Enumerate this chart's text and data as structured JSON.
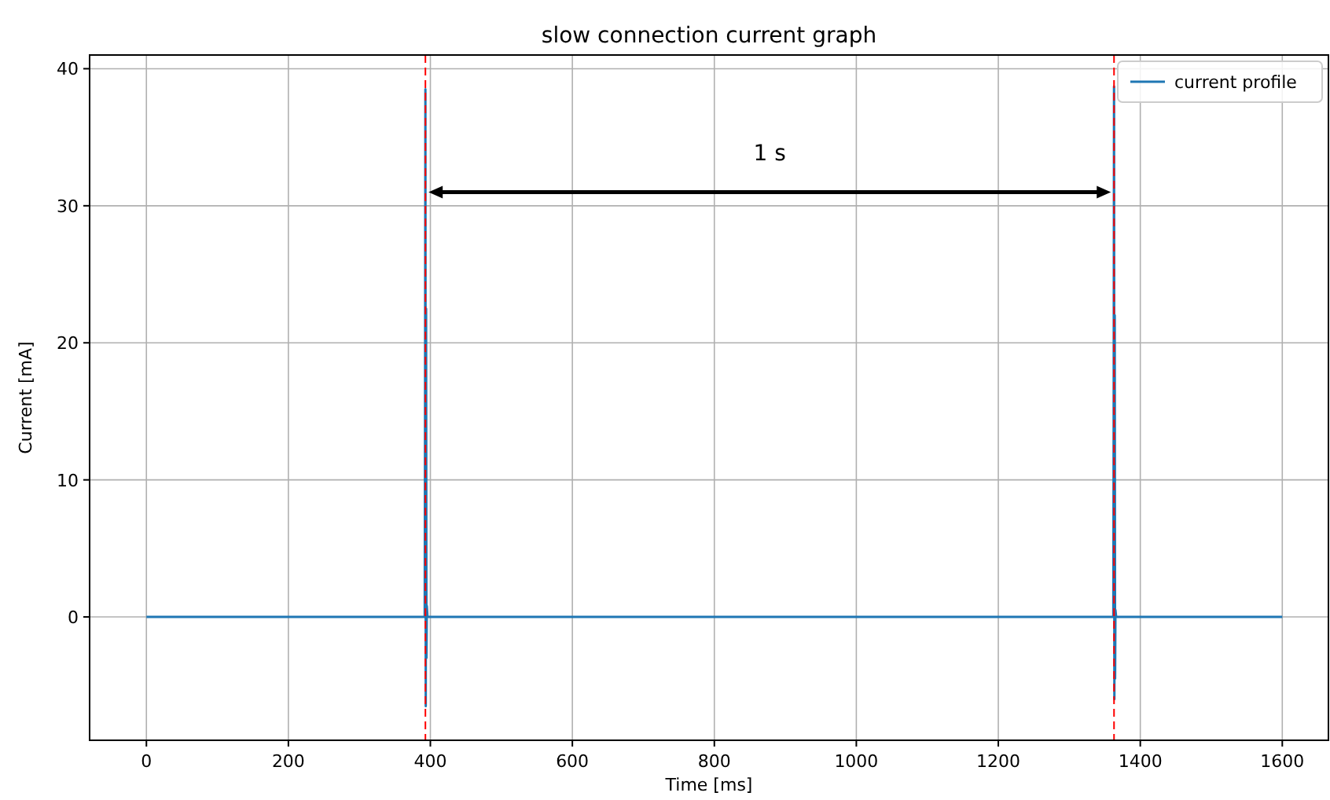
{
  "chart_data": {
    "type": "line",
    "title": "slow connection current graph",
    "xlabel": "Time [ms]",
    "ylabel": "Current [mA]",
    "xlim": [
      -80,
      1665
    ],
    "ylim": [
      -9,
      41
    ],
    "xticks": [
      0,
      200,
      400,
      600,
      800,
      1000,
      1200,
      1400,
      1600
    ],
    "yticks": [
      0,
      10,
      20,
      30,
      40
    ],
    "series": [
      {
        "name": "current profile",
        "color": "#1f77b4",
        "x": [
          0,
          392,
          392.5,
          393,
          393.5,
          394,
          394.5,
          395,
          396,
          1362,
          1362.5,
          1363,
          1363.5,
          1364,
          1364.5,
          1365,
          1366,
          1600
        ],
        "values": [
          0,
          0,
          15,
          38.5,
          -6.5,
          22.5,
          -3,
          0.8,
          0,
          0,
          15,
          38.7,
          -6,
          22,
          -4.5,
          0.5,
          0,
          0
        ]
      }
    ],
    "ref_lines": [
      {
        "axis": "x",
        "value": 393,
        "color": "#ff0000",
        "line_style": "dashed"
      },
      {
        "axis": "x",
        "value": 1363,
        "color": "#ff0000",
        "line_style": "dashed"
      }
    ],
    "annotations": [
      "1 s"
    ],
    "grid": true,
    "legend": "top right",
    "marker": "none",
    "line_style": "solid"
  }
}
